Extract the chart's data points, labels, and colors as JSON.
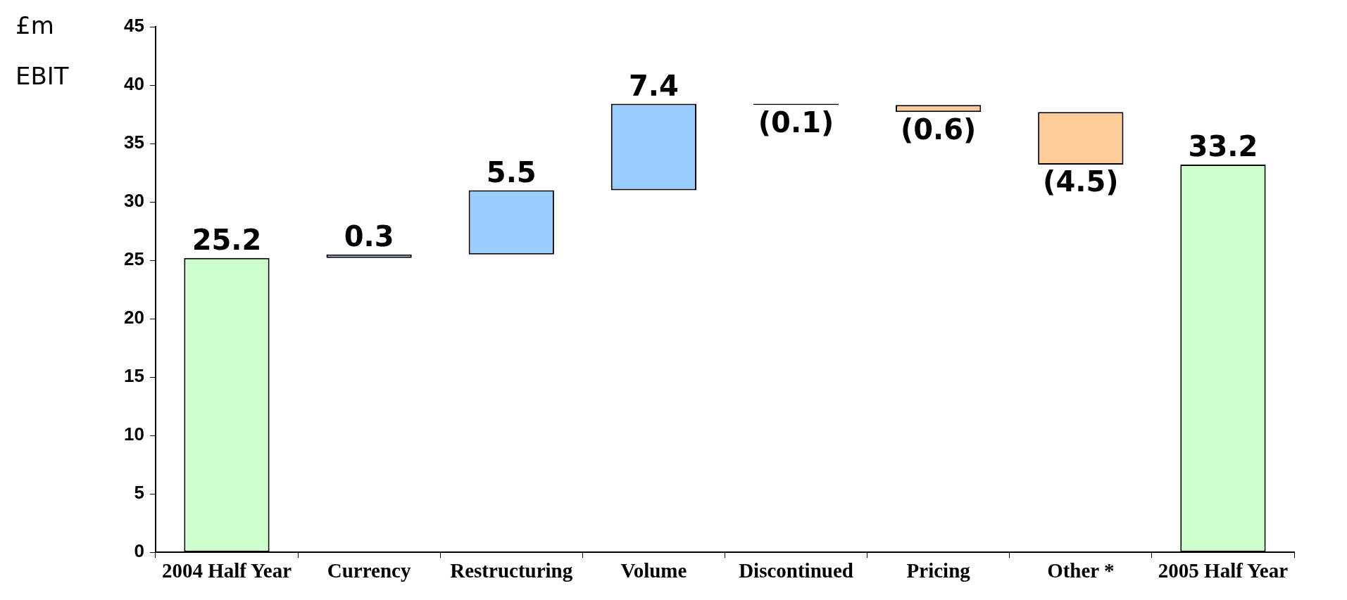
{
  "chart_data": {
    "type": "bar",
    "title": "EBIT",
    "ylabel": "£m",
    "categories": [
      "2004 Half Year",
      "Currency",
      "Restructuring",
      "Volume",
      "Discontinued",
      "Pricing",
      "Other *",
      "2005 Half Year"
    ],
    "values": [
      25.2,
      0.3,
      5.5,
      7.4,
      -0.1,
      -0.6,
      -4.5,
      33.2
    ],
    "base": [
      0,
      25.2,
      25.5,
      31.0,
      38.4,
      38.3,
      37.7,
      0
    ],
    "colors": [
      "#ccffcc",
      "#99ccff",
      "#99ccff",
      "#99ccff",
      "#000000",
      "#ffcc99",
      "#ffcc99",
      "#ccffcc"
    ],
    "value_labels": [
      "25.2",
      "0.3",
      "5.5",
      "7.4",
      "(0.1)",
      "(0.6)",
      "(4.5)",
      "33.2"
    ],
    "ylim": [
      0,
      45
    ],
    "yticks": [
      0,
      5,
      10,
      15,
      20,
      25,
      30,
      35,
      40,
      45
    ],
    "grid": false,
    "legend": false
  }
}
